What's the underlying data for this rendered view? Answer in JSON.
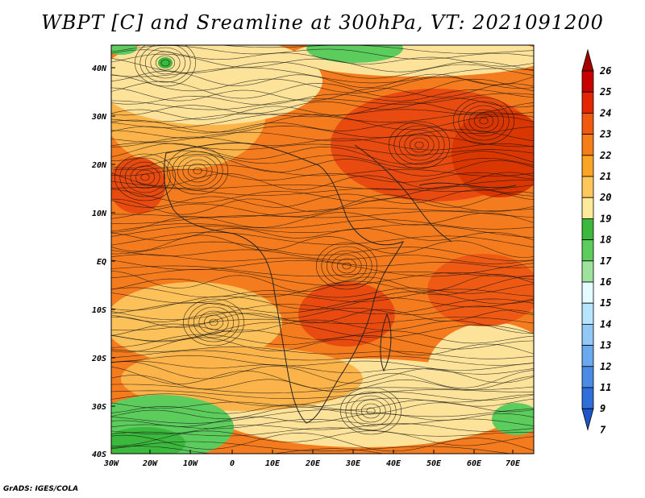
{
  "title": "WBPT [C] and Sreamline at 300hPa, VT: 2021091200",
  "credit": "GrADS: IGES/COLA",
  "map": {
    "lat_ticks": [
      "40N",
      "30N",
      "20N",
      "10N",
      "EQ",
      "10S",
      "20S",
      "30S",
      "40S"
    ],
    "lon_ticks": [
      "30W",
      "20W",
      "10W",
      "0",
      "10E",
      "20E",
      "30E",
      "40E",
      "50E",
      "60E",
      "70E"
    ]
  },
  "colorbar": {
    "levels": [
      "26",
      "25",
      "24",
      "23",
      "22",
      "21",
      "20",
      "19",
      "18",
      "17",
      "16",
      "15",
      "14",
      "13",
      "12",
      "11",
      "9",
      "7"
    ],
    "colors": [
      "#a50000",
      "#c80000",
      "#e32600",
      "#f05a10",
      "#f77d16",
      "#fba425",
      "#fdc75a",
      "#fde99a",
      "#3cb83c",
      "#5ccc5c",
      "#9ee29e",
      "#e4fbff",
      "#b8e4ff",
      "#92c8f5",
      "#6aa9ee",
      "#4b8be6",
      "#2f6fdc",
      "#1f55c8"
    ]
  }
}
